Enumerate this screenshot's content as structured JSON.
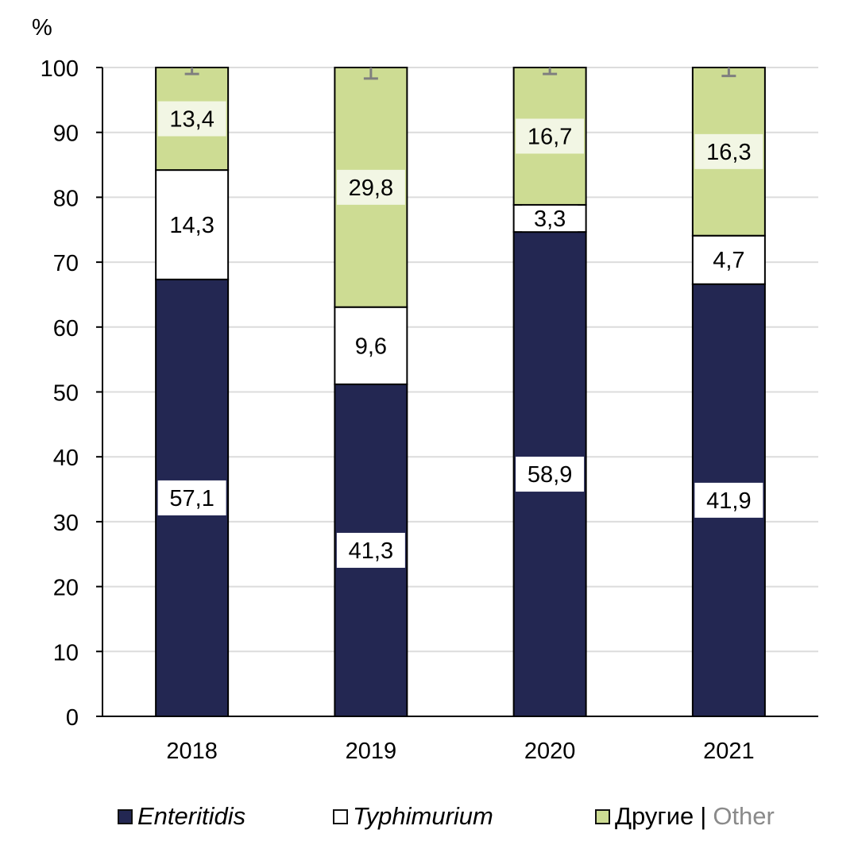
{
  "chart_data": {
    "type": "bar",
    "stacked": true,
    "normalized": true,
    "title": "",
    "xlabel": "",
    "ylabel": "%",
    "ylim": [
      0,
      100
    ],
    "yticks": [
      "0",
      "10",
      "20",
      "30",
      "40",
      "50",
      "60",
      "70",
      "80",
      "90",
      "100"
    ],
    "grid": true,
    "categories": [
      "2018",
      "2019",
      "2020",
      "2021"
    ],
    "series": [
      {
        "name": "Enteritidis",
        "color": "#232752",
        "label_bg": "#ffffff",
        "values": [
          57.1,
          41.3,
          58.9,
          41.9
        ],
        "labels": [
          "57,1",
          "41,3",
          "58,9",
          "41,9"
        ]
      },
      {
        "name": "Typhimurium",
        "color": "#ffffff",
        "label_bg": "#ffffff",
        "values": [
          14.3,
          9.6,
          3.3,
          4.7
        ],
        "labels": [
          "14,3",
          "9,6",
          "3,3",
          "4,7"
        ]
      },
      {
        "name": "Другие | Other",
        "color": "#cddc93",
        "label_bg": "#f2f6e4",
        "values": [
          13.4,
          29.8,
          16.7,
          16.3
        ],
        "labels": [
          "13,4",
          "29,8",
          "16,7",
          "16,3"
        ]
      }
    ],
    "error_bars": {
      "color": "#7f7f7f",
      "values": [
        1.0,
        1.7,
        1.0,
        1.3
      ]
    },
    "legend": {
      "position": "bottom",
      "items": [
        {
          "label": "Enteritidis",
          "italic": true,
          "color": "#232752"
        },
        {
          "label": "Typhimurium",
          "italic": true,
          "color": "#ffffff"
        },
        {
          "label": "Другие",
          "label_en": "Other",
          "separator": "|",
          "italic": false,
          "color": "#cddc93"
        }
      ]
    }
  }
}
